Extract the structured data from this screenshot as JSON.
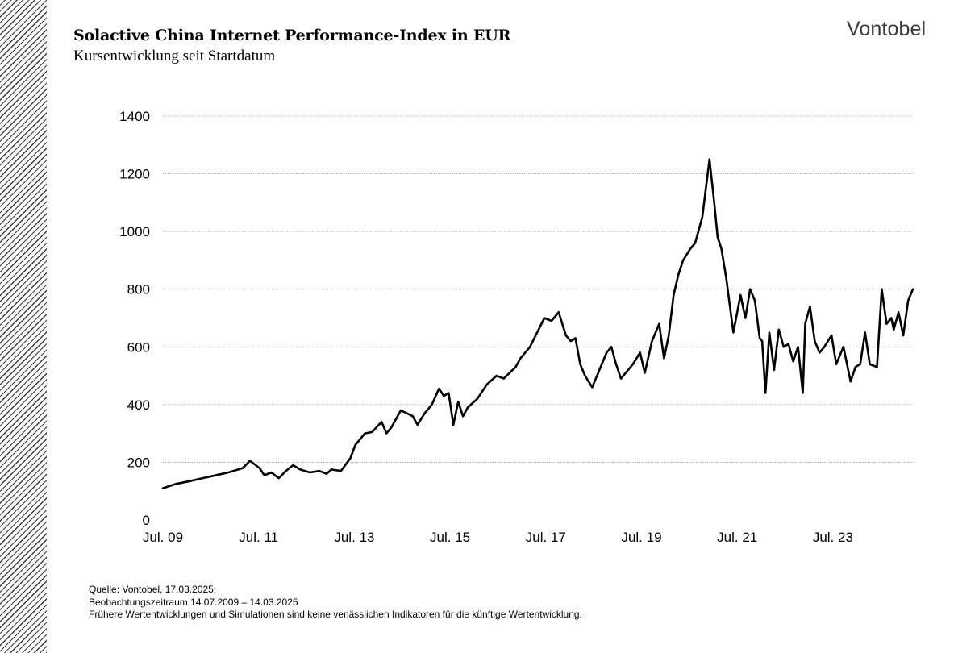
{
  "header": {
    "title": "Solactive China Internet Performance-Index in EUR",
    "subtitle": "Kursentwicklung seit Startdatum",
    "brand": "Vontobel"
  },
  "footnote": {
    "source": "Quelle: Vontobel, 17.03.2025;",
    "period": "Beobachtungszeitraum 14.07.2009 – 14.03.2025",
    "disclaimer": "Frühere Wertentwicklungen und Simulationen sind keine verlässlichen Indikatoren für die künftige Wertentwicklung."
  },
  "colors": {
    "line": "#000000",
    "grid": "#8c8c8c",
    "hatch": "#3a3a3a",
    "brand": "#3a3a3a"
  },
  "chart_data": {
    "type": "line",
    "title": "Solactive China Internet Performance-Index in EUR",
    "subtitle": "Kursentwicklung seit Startdatum",
    "xlabel": "",
    "ylabel": "",
    "grid": true,
    "xlim": [
      2009.53,
      2025.2
    ],
    "ylim": [
      0,
      1400
    ],
    "yticks": [
      0,
      200,
      400,
      600,
      800,
      1000,
      1200,
      1400
    ],
    "xticks": [
      {
        "label": "Jul. 09",
        "x": 2009.53
      },
      {
        "label": "Jul. 11",
        "x": 2011.53
      },
      {
        "label": "Jul. 13",
        "x": 2013.53
      },
      {
        "label": "Jul. 15",
        "x": 2015.53
      },
      {
        "label": "Jul. 17",
        "x": 2017.53
      },
      {
        "label": "Jul. 19",
        "x": 2019.53
      },
      {
        "label": "Jul. 21",
        "x": 2021.53
      },
      {
        "label": "Jul. 23",
        "x": 2023.53
      }
    ],
    "series": [
      {
        "name": "Solactive China Internet Performance-Index in EUR",
        "x": [
          2009.53,
          2009.8,
          2010.1,
          2010.5,
          2010.9,
          2011.2,
          2011.35,
          2011.55,
          2011.65,
          2011.8,
          2011.95,
          2012.1,
          2012.25,
          2012.4,
          2012.6,
          2012.8,
          2012.95,
          2013.05,
          2013.25,
          2013.45,
          2013.55,
          2013.75,
          2013.9,
          2014.1,
          2014.2,
          2014.3,
          2014.5,
          2014.75,
          2014.85,
          2015.0,
          2015.15,
          2015.3,
          2015.4,
          2015.5,
          2015.6,
          2015.7,
          2015.8,
          2015.9,
          2016.1,
          2016.3,
          2016.5,
          2016.65,
          2016.9,
          2017.0,
          2017.2,
          2017.35,
          2017.5,
          2017.65,
          2017.8,
          2017.95,
          2018.05,
          2018.15,
          2018.25,
          2018.35,
          2018.5,
          2018.65,
          2018.8,
          2018.9,
          2019.0,
          2019.1,
          2019.25,
          2019.35,
          2019.5,
          2019.6,
          2019.75,
          2019.9,
          2020.0,
          2020.1,
          2020.2,
          2020.3,
          2020.4,
          2020.55,
          2020.65,
          2020.8,
          2020.95,
          2021.05,
          2021.12,
          2021.2,
          2021.3,
          2021.45,
          2021.6,
          2021.7,
          2021.8,
          2021.9,
          2022.0,
          2022.05,
          2022.12,
          2022.2,
          2022.3,
          2022.4,
          2022.5,
          2022.6,
          2022.7,
          2022.8,
          2022.9,
          2022.95,
          2023.05,
          2023.15,
          2023.25,
          2023.35,
          2023.5,
          2023.6,
          2023.75,
          2023.9,
          2024.0,
          2024.1,
          2024.2,
          2024.3,
          2024.45,
          2024.55,
          2024.65,
          2024.75,
          2024.8,
          2024.9,
          2025.0,
          2025.1,
          2025.2
        ],
        "values": [
          110,
          125,
          135,
          150,
          165,
          180,
          205,
          180,
          155,
          165,
          145,
          170,
          190,
          175,
          165,
          170,
          160,
          175,
          170,
          215,
          260,
          300,
          305,
          340,
          300,
          320,
          380,
          360,
          330,
          370,
          400,
          455,
          430,
          440,
          330,
          410,
          360,
          390,
          420,
          470,
          500,
          490,
          530,
          560,
          600,
          650,
          700,
          690,
          720,
          640,
          620,
          630,
          540,
          500,
          460,
          520,
          580,
          600,
          540,
          490,
          520,
          540,
          580,
          510,
          620,
          680,
          560,
          640,
          780,
          850,
          900,
          940,
          960,
          1050,
          1250,
          1100,
          980,
          940,
          840,
          650,
          780,
          700,
          800,
          760,
          630,
          620,
          440,
          650,
          520,
          660,
          600,
          610,
          550,
          600,
          440,
          680,
          740,
          620,
          580,
          600,
          640,
          540,
          600,
          480,
          530,
          540,
          650,
          540,
          530,
          800,
          680,
          700,
          660,
          720,
          640,
          760,
          800
        ]
      }
    ]
  }
}
